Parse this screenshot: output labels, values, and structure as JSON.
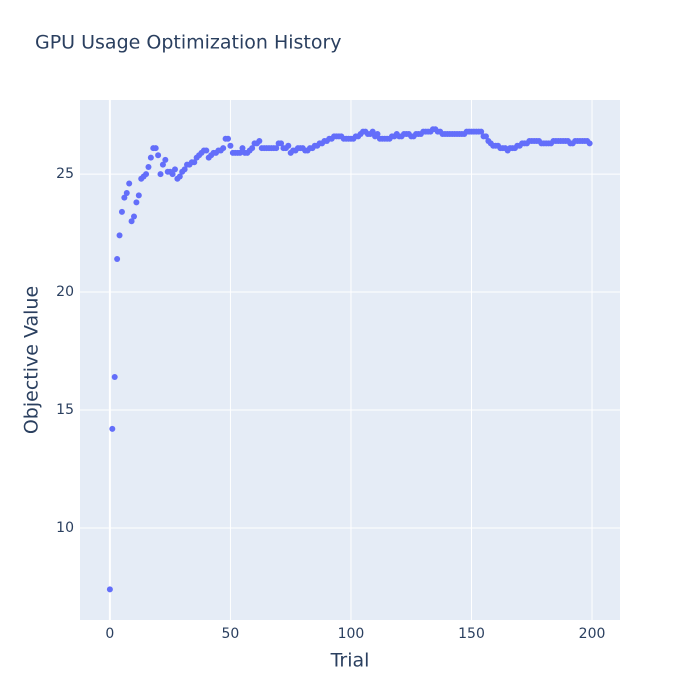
{
  "chart_data": {
    "type": "scatter",
    "title": "GPU Usage Optimization History",
    "x_label": "Trial",
    "y_label": "Objective Value",
    "color": "#636efa",
    "grid": true,
    "xlim": [
      -12.4,
      211.6
    ],
    "ylim": [
      6.1,
      28.14
    ],
    "xticks": [
      0,
      50,
      100,
      150,
      200
    ],
    "yticks": [
      10,
      15,
      20,
      25
    ],
    "x": [
      0,
      1,
      2,
      3,
      4,
      5,
      6,
      7,
      8,
      9,
      10,
      11,
      12,
      13,
      14,
      15,
      16,
      17,
      18,
      19,
      20,
      21,
      22,
      23,
      24,
      25,
      26,
      27,
      28,
      29,
      30,
      31,
      32,
      33,
      34,
      35,
      36,
      37,
      38,
      39,
      40,
      41,
      42,
      43,
      44,
      45,
      46,
      47,
      48,
      49,
      50,
      51,
      52,
      53,
      54,
      55,
      56,
      57,
      58,
      59,
      60,
      61,
      62,
      63,
      64,
      65,
      66,
      67,
      68,
      69,
      70,
      71,
      72,
      73,
      74,
      75,
      76,
      77,
      78,
      79,
      80,
      81,
      82,
      83,
      84,
      85,
      86,
      87,
      88,
      89,
      90,
      91,
      92,
      93,
      94,
      95,
      96,
      97,
      98,
      99,
      100,
      101,
      102,
      103,
      104,
      105,
      106,
      107,
      108,
      109,
      110,
      111,
      112,
      113,
      114,
      115,
      116,
      117,
      118,
      119,
      120,
      121,
      122,
      123,
      124,
      125,
      126,
      127,
      128,
      129,
      130,
      131,
      132,
      133,
      134,
      135,
      136,
      137,
      138,
      139,
      140,
      141,
      142,
      143,
      144,
      145,
      146,
      147,
      148,
      149,
      150,
      151,
      152,
      153,
      154,
      155,
      156,
      157,
      158,
      159,
      160,
      161,
      162,
      163,
      164,
      165,
      166,
      167,
      168,
      169,
      170,
      171,
      172,
      173,
      174,
      175,
      176,
      177,
      178,
      179,
      180,
      181,
      182,
      183,
      184,
      185,
      186,
      187,
      188,
      189,
      190,
      191,
      192,
      193,
      194,
      195,
      196,
      197,
      198,
      199
    ],
    "values": [
      7.4,
      14.2,
      16.4,
      21.4,
      22.4,
      23.4,
      24.0,
      24.2,
      24.6,
      23.0,
      23.2,
      23.8,
      24.1,
      24.8,
      24.9,
      25.0,
      25.3,
      25.7,
      26.1,
      26.1,
      25.8,
      25.0,
      25.4,
      25.6,
      25.1,
      25.1,
      25.0,
      25.2,
      24.8,
      24.9,
      25.1,
      25.2,
      25.4,
      25.4,
      25.5,
      25.5,
      25.7,
      25.8,
      25.9,
      26.0,
      26.0,
      25.7,
      25.8,
      25.9,
      25.9,
      26.0,
      26.0,
      26.1,
      26.5,
      26.5,
      26.2,
      25.9,
      25.9,
      25.9,
      25.9,
      26.1,
      25.9,
      25.9,
      26.0,
      26.1,
      26.3,
      26.3,
      26.4,
      26.1,
      26.1,
      26.1,
      26.1,
      26.1,
      26.1,
      26.1,
      26.3,
      26.3,
      26.1,
      26.1,
      26.2,
      25.9,
      26.0,
      26.0,
      26.1,
      26.1,
      26.1,
      26.0,
      26.0,
      26.1,
      26.1,
      26.2,
      26.2,
      26.3,
      26.3,
      26.4,
      26.4,
      26.5,
      26.5,
      26.6,
      26.6,
      26.6,
      26.6,
      26.5,
      26.5,
      26.5,
      26.5,
      26.5,
      26.6,
      26.6,
      26.7,
      26.8,
      26.8,
      26.7,
      26.7,
      26.8,
      26.6,
      26.7,
      26.5,
      26.5,
      26.5,
      26.5,
      26.5,
      26.6,
      26.6,
      26.7,
      26.6,
      26.6,
      26.7,
      26.7,
      26.7,
      26.6,
      26.6,
      26.7,
      26.7,
      26.7,
      26.8,
      26.8,
      26.8,
      26.8,
      26.9,
      26.9,
      26.8,
      26.8,
      26.7,
      26.7,
      26.7,
      26.7,
      26.7,
      26.7,
      26.7,
      26.7,
      26.7,
      26.7,
      26.8,
      26.8,
      26.8,
      26.8,
      26.8,
      26.8,
      26.8,
      26.6,
      26.6,
      26.4,
      26.3,
      26.2,
      26.2,
      26.2,
      26.1,
      26.1,
      26.1,
      26.0,
      26.1,
      26.1,
      26.1,
      26.2,
      26.2,
      26.3,
      26.3,
      26.3,
      26.4,
      26.4,
      26.4,
      26.4,
      26.4,
      26.3,
      26.3,
      26.3,
      26.3,
      26.3,
      26.4,
      26.4,
      26.4,
      26.4,
      26.4,
      26.4,
      26.4,
      26.3,
      26.3,
      26.4,
      26.4,
      26.4,
      26.4,
      26.4,
      26.4,
      26.3
    ]
  }
}
